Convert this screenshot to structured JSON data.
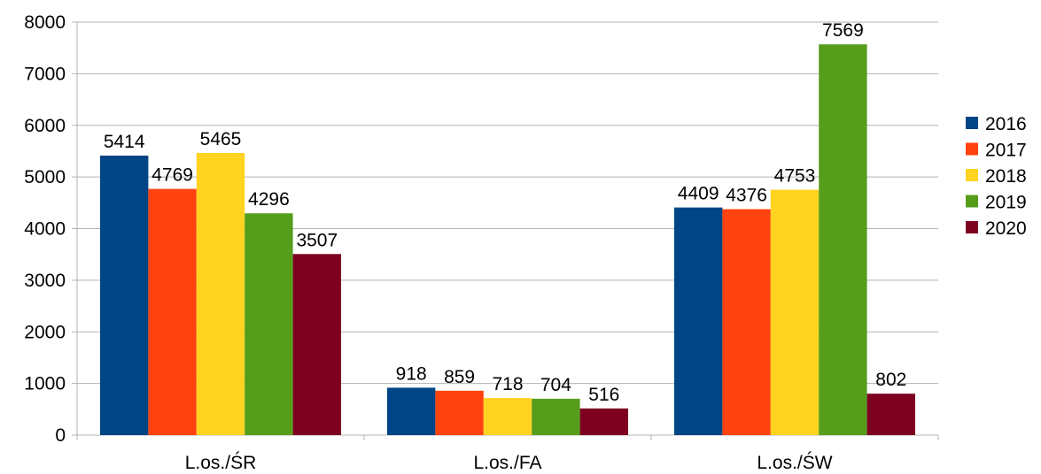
{
  "chart_data": {
    "type": "bar",
    "title": "",
    "xlabel": "",
    "ylabel": "",
    "categories": [
      "L.os./ŚR",
      "L.os./FA",
      "L.os./ŚW"
    ],
    "ylim": [
      0,
      8000
    ],
    "yticks": [
      0,
      1000,
      2000,
      3000,
      4000,
      5000,
      6000,
      7000,
      8000
    ],
    "grid": true,
    "legend_position": "right",
    "data_labels": true,
    "series": [
      {
        "name": "2016",
        "color": "#004586",
        "values": [
          5414,
          918,
          4409
        ]
      },
      {
        "name": "2017",
        "color": "#ff420e",
        "values": [
          4769,
          859,
          4376
        ]
      },
      {
        "name": "2018",
        "color": "#ffd320",
        "values": [
          5465,
          718,
          4753
        ]
      },
      {
        "name": "2019",
        "color": "#579d1c",
        "values": [
          4296,
          704,
          7569
        ]
      },
      {
        "name": "2020",
        "color": "#7e0021",
        "values": [
          3507,
          516,
          802
        ]
      }
    ]
  }
}
